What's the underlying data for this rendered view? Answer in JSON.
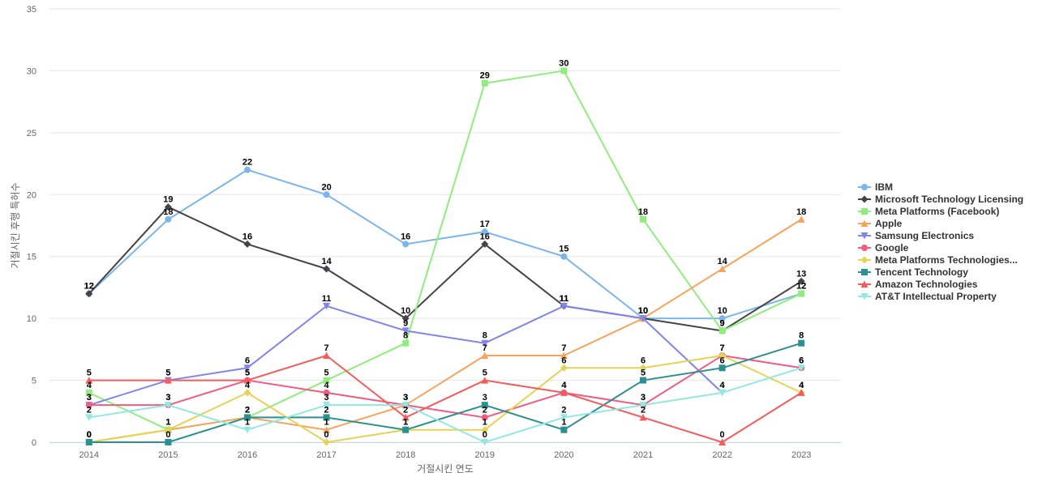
{
  "chart_data": {
    "type": "line",
    "title": "",
    "xlabel": "거절시킨 연도",
    "ylabel": "거절시킨 후행 특허수",
    "ylim": [
      0,
      35
    ],
    "yticks": [
      0,
      5,
      10,
      15,
      20,
      25,
      30,
      35
    ],
    "grid": true,
    "legend_position": "right",
    "categories": [
      "2014",
      "2015",
      "2016",
      "2017",
      "2018",
      "2019",
      "2020",
      "2021",
      "2022",
      "2023"
    ],
    "series": [
      {
        "name": "IBM",
        "color": "#7cb5ec",
        "marker": "circle",
        "values": [
          12,
          18,
          22,
          20,
          16,
          17,
          15,
          10,
          10,
          12
        ]
      },
      {
        "name": "Microsoft Technology Licensing",
        "color": "#434348",
        "marker": "diamond",
        "values": [
          12,
          19,
          16,
          14,
          10,
          16,
          11,
          10,
          9,
          13
        ]
      },
      {
        "name": "Meta Platforms (Facebook)",
        "color": "#90ed7d",
        "marker": "square",
        "values": [
          4,
          1,
          2,
          5,
          8,
          29,
          30,
          18,
          9,
          12
        ]
      },
      {
        "name": "Apple",
        "color": "#f7a35c",
        "marker": "triangle",
        "values": [
          0,
          1,
          2,
          1,
          3,
          7,
          7,
          10,
          14,
          18
        ]
      },
      {
        "name": "Samsung Electronics",
        "color": "#8085e9",
        "marker": "triangle-down",
        "values": [
          3,
          5,
          6,
          11,
          9,
          8,
          11,
          10,
          4,
          null
        ]
      },
      {
        "name": "Google",
        "color": "#f15c80",
        "marker": "circle",
        "values": [
          3,
          3,
          5,
          4,
          3,
          2,
          4,
          3,
          7,
          6
        ]
      },
      {
        "name": "Meta Platforms Technologies...",
        "color": "#e4d354",
        "marker": "diamond",
        "values": [
          0,
          1,
          4,
          0,
          1,
          1,
          6,
          6,
          7,
          4
        ]
      },
      {
        "name": "Tencent Technology",
        "color": "#2b908f",
        "marker": "square",
        "values": [
          0,
          0,
          2,
          2,
          1,
          3,
          1,
          5,
          6,
          8
        ]
      },
      {
        "name": "Amazon Technologies",
        "color": "#f45b5b",
        "marker": "triangle",
        "values": [
          5,
          5,
          5,
          7,
          2,
          5,
          4,
          2,
          0,
          4
        ]
      },
      {
        "name": "AT&T Intellectual Property",
        "color": "#91e8e1",
        "marker": "triangle-down",
        "values": [
          2,
          3,
          1,
          3,
          3,
          0,
          2,
          3,
          4,
          6
        ]
      }
    ]
  }
}
